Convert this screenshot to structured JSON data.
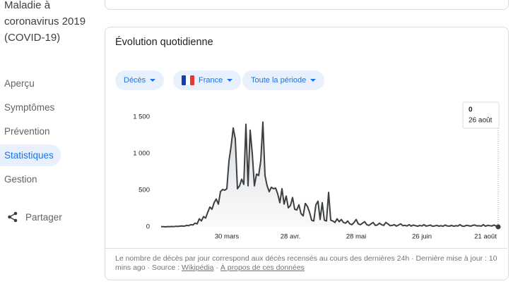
{
  "sidebar": {
    "title": "Maladie à coronavirus 2019 (COVID-19)",
    "items": [
      "Aperçu",
      "Symptômes",
      "Prévention",
      "Statistiques",
      "Gestion"
    ],
    "selected": 3,
    "share": "Partager"
  },
  "card": {
    "title": "Évolution quotidienne",
    "filters": [
      "Décès",
      "France",
      "Toute la période"
    ]
  },
  "chart_data": {
    "type": "line",
    "categories": [
      null,
      null,
      null,
      null,
      null,
      null,
      null,
      null,
      null,
      null,
      null,
      null,
      null,
      null,
      null,
      null,
      null,
      null,
      null,
      null,
      null,
      null,
      null,
      null,
      null,
      null,
      null,
      null,
      null,
      null,
      null,
      "30 mars",
      null,
      null,
      null,
      null,
      null,
      null,
      null,
      null,
      null,
      null,
      null,
      null,
      null,
      null,
      null,
      null,
      null,
      null,
      null,
      null,
      null,
      null,
      null,
      null,
      null,
      null,
      null,
      null,
      null,
      "28 avr.",
      null,
      null,
      null,
      null,
      null,
      null,
      null,
      null,
      null,
      null,
      null,
      null,
      null,
      null,
      null,
      null,
      null,
      null,
      null,
      null,
      null,
      null,
      null,
      null,
      null,
      null,
      null,
      null,
      null,
      null,
      "28 mai",
      null,
      null,
      null,
      null,
      null,
      null,
      null,
      null,
      null,
      null,
      null,
      null,
      null,
      null,
      null,
      null,
      null,
      null,
      null,
      null,
      null,
      null,
      null,
      null,
      null,
      null,
      null,
      null,
      null,
      null,
      "26 juin",
      null,
      null,
      null,
      null,
      null,
      null,
      null,
      null,
      null,
      null,
      null,
      null,
      null,
      null,
      null,
      null,
      null,
      null,
      null,
      null,
      null,
      null,
      null,
      null,
      null,
      null,
      null,
      null,
      null,
      "21 août",
      null,
      null,
      null,
      null,
      null,
      null
    ],
    "values": [
      2,
      3,
      0,
      4,
      2,
      5,
      3,
      8,
      6,
      10,
      12,
      9,
      20,
      15,
      30,
      25,
      50,
      40,
      110,
      80,
      140,
      120,
      200,
      270,
      240,
      330,
      380,
      310,
      480,
      510,
      500,
      520,
      900,
      1100,
      1350,
      1200,
      520,
      560,
      650,
      580,
      1400,
      560,
      1320,
      1000,
      560,
      720,
      700,
      900,
      1430,
      700,
      560,
      480,
      540,
      520,
      530,
      450,
      330,
      520,
      310,
      420,
      260,
      290,
      400,
      240,
      230,
      300,
      180,
      150,
      320,
      280,
      200,
      90,
      80,
      300,
      350,
      100,
      330,
      90,
      80,
      470,
      90,
      80,
      60,
      110,
      70,
      100,
      60,
      50,
      80,
      40,
      30,
      60,
      100,
      40,
      30,
      50,
      70,
      30,
      20,
      40,
      60,
      20,
      25,
      50,
      30,
      20,
      60,
      40,
      15,
      20,
      30,
      10,
      25,
      40,
      15,
      20,
      12,
      30,
      10,
      25,
      15,
      8,
      20,
      12,
      30,
      10,
      15,
      25,
      8,
      12,
      20,
      10,
      15,
      8,
      25,
      12,
      10,
      20,
      8,
      15,
      12,
      30,
      10,
      8,
      20,
      15,
      10,
      20,
      25,
      12,
      15,
      10,
      30,
      8,
      20,
      15,
      12,
      25,
      10,
      0
    ],
    "color": "#3c4043",
    "ylim": [
      0,
      1500
    ],
    "yticks": [
      0,
      500,
      {
        "value": 1000,
        "label": "1 000"
      },
      {
        "value": 1500,
        "label": "1 500"
      }
    ],
    "tooltip_date": "26 août"
  },
  "footer": {
    "text": "Le nombre de décès par jour correspond aux décès recensés au cours des dernières 24h · Dernière mise à jour : 10 mins ago · Source :",
    "source": "Wikipédia",
    "separator": "·",
    "about": "À propos de ces données"
  }
}
